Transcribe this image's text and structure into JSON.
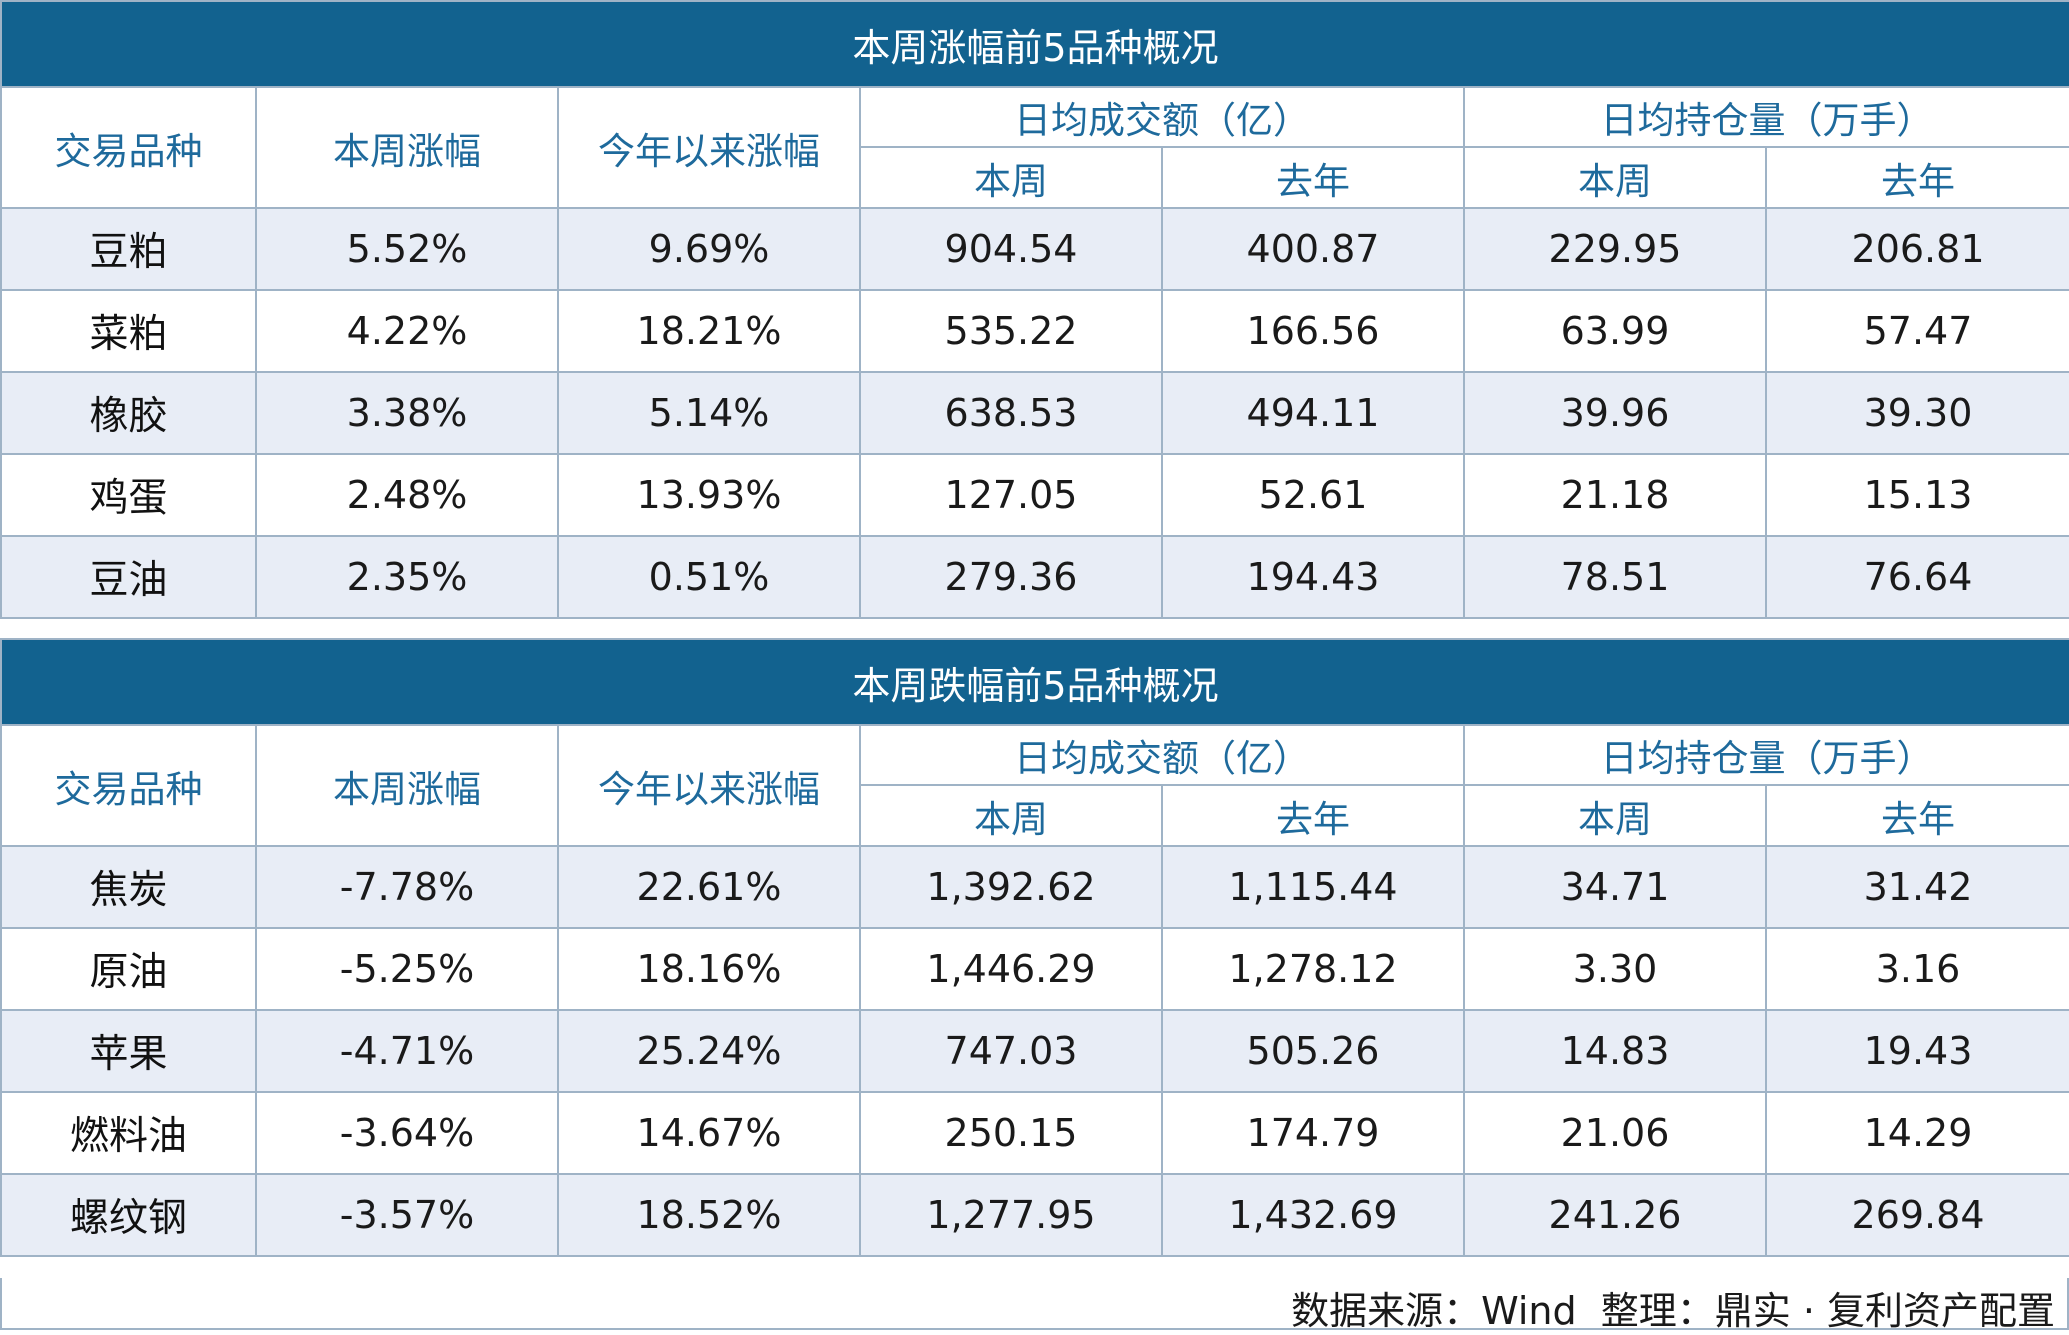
{
  "headers": {
    "item": "交易品种",
    "week_change": "本周涨幅",
    "ytd_change": "今年以来涨幅",
    "turnover_group": "日均成交额（亿）",
    "oi_group": "日均持仓量（万手）",
    "this_week": "本周",
    "last_year": "去年"
  },
  "top": {
    "title": "本周涨幅前5品种概况",
    "rows": [
      {
        "name": "豆粕",
        "week": "5.52%",
        "ytd": "9.69%",
        "turnover_week": "904.54",
        "turnover_last_year": "400.87",
        "oi_week": "229.95",
        "oi_last_year": "206.81"
      },
      {
        "name": "菜粕",
        "week": "4.22%",
        "ytd": "18.21%",
        "turnover_week": "535.22",
        "turnover_last_year": "166.56",
        "oi_week": "63.99",
        "oi_last_year": "57.47"
      },
      {
        "name": "橡胶",
        "week": "3.38%",
        "ytd": "5.14%",
        "turnover_week": "638.53",
        "turnover_last_year": "494.11",
        "oi_week": "39.96",
        "oi_last_year": "39.30"
      },
      {
        "name": "鸡蛋",
        "week": "2.48%",
        "ytd": "13.93%",
        "turnover_week": "127.05",
        "turnover_last_year": "52.61",
        "oi_week": "21.18",
        "oi_last_year": "15.13"
      },
      {
        "name": "豆油",
        "week": "2.35%",
        "ytd": "0.51%",
        "turnover_week": "279.36",
        "turnover_last_year": "194.43",
        "oi_week": "78.51",
        "oi_last_year": "76.64"
      }
    ]
  },
  "bottom": {
    "title": "本周跌幅前5品种概况",
    "rows": [
      {
        "name": "焦炭",
        "week": "-7.78%",
        "ytd": "22.61%",
        "turnover_week": "1,392.62",
        "turnover_last_year": "1,115.44",
        "oi_week": "34.71",
        "oi_last_year": "31.42"
      },
      {
        "name": "原油",
        "week": "-5.25%",
        "ytd": "18.16%",
        "turnover_week": "1,446.29",
        "turnover_last_year": "1,278.12",
        "oi_week": "3.30",
        "oi_last_year": "3.16"
      },
      {
        "name": "苹果",
        "week": "-4.71%",
        "ytd": "25.24%",
        "turnover_week": "747.03",
        "turnover_last_year": "505.26",
        "oi_week": "14.83",
        "oi_last_year": "19.43"
      },
      {
        "name": "燃料油",
        "week": "-3.64%",
        "ytd": "14.67%",
        "turnover_week": "250.15",
        "turnover_last_year": "174.79",
        "oi_week": "21.06",
        "oi_last_year": "14.29"
      },
      {
        "name": "螺纹钢",
        "week": "-3.57%",
        "ytd": "18.52%",
        "turnover_week": "1,277.95",
        "turnover_last_year": "1,432.69",
        "oi_week": "241.26",
        "oi_last_year": "269.84"
      }
    ]
  },
  "footer": {
    "source": "数据来源：Wind  整理：鼎实 · 复利资产配置"
  }
}
